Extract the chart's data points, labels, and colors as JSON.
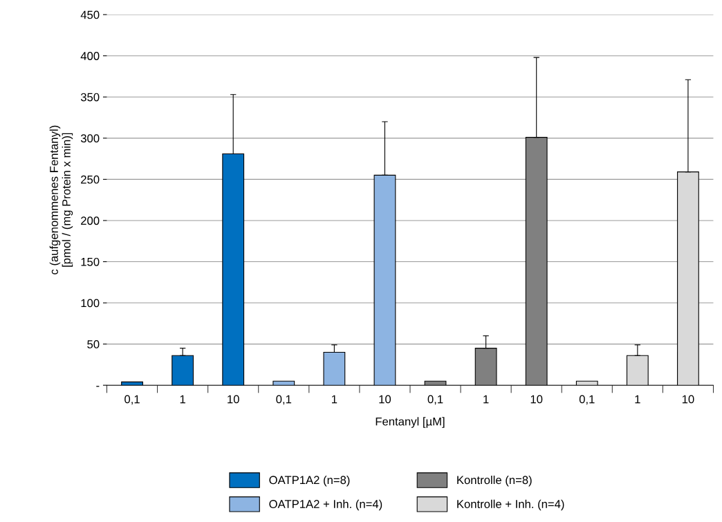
{
  "chart_data": {
    "type": "bar",
    "categories": [
      "0,1",
      "1",
      "10",
      "0,1",
      "1",
      "10",
      "0,1",
      "1",
      "10",
      "0,1",
      "1",
      "10"
    ],
    "xlabel": "Fentanyl [µM]",
    "ylabel": "c (aufgenommenes Fentanyl)\n[pmol / (mg Protein x min)]",
    "series": [
      {
        "name": "OATP1A2 (n=8)",
        "color": "#0070c0",
        "values": [
          4,
          36,
          281,
          null,
          null,
          null,
          null,
          null,
          null,
          null,
          null,
          null
        ],
        "errors": [
          null,
          [
            36,
            45
          ],
          [
            281,
            353
          ],
          null,
          null,
          null,
          null,
          null,
          null,
          null,
          null,
          null
        ]
      },
      {
        "name": "OATP1A2 + Inh. (n=4)",
        "color": "#8db4e2",
        "values": [
          null,
          null,
          null,
          5,
          40,
          255,
          null,
          null,
          null,
          null,
          null,
          null
        ],
        "errors": [
          null,
          null,
          null,
          null,
          [
            40,
            49
          ],
          [
            255,
            320
          ],
          null,
          null,
          null,
          null,
          null,
          null
        ]
      },
      {
        "name": "Kontrolle (n=8)",
        "color": "#808080",
        "values": [
          null,
          null,
          null,
          null,
          null,
          null,
          5,
          45,
          301,
          null,
          null,
          null
        ],
        "errors": [
          null,
          null,
          null,
          null,
          null,
          null,
          null,
          [
            45,
            60
          ],
          [
            301,
            398
          ],
          null,
          null,
          null
        ]
      },
      {
        "name": "Kontrolle + Inh. (n=4)",
        "color": "#d9d9d9",
        "values": [
          null,
          null,
          null,
          null,
          null,
          null,
          null,
          null,
          null,
          5,
          36,
          259
        ],
        "errors": [
          null,
          null,
          null,
          null,
          null,
          null,
          null,
          null,
          null,
          null,
          [
            36,
            49
          ],
          [
            259,
            371
          ]
        ]
      }
    ],
    "ylim": [
      0,
      450
    ],
    "yticks": [
      {
        "value": 0,
        "label": "-"
      },
      50,
      100,
      150,
      200,
      250,
      300,
      350,
      400,
      450
    ],
    "grid": "y",
    "legend": "bottom"
  }
}
